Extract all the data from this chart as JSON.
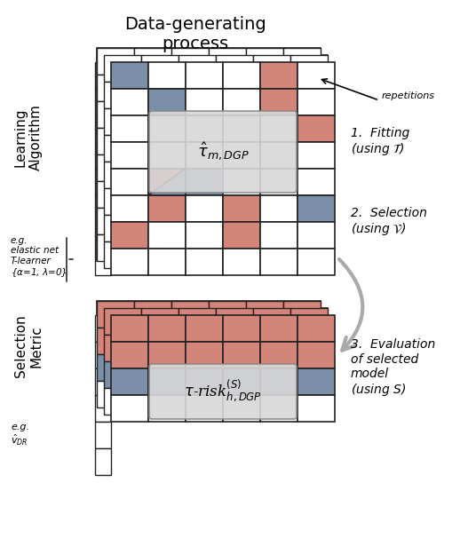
{
  "title": "Data-generating\nprocess",
  "top_label": "Learning\nAlgorithm",
  "bottom_label": "Selection\nMetric",
  "color_salmon": "#D4857A",
  "color_steel": "#7B8FA8",
  "color_white": "#FFFFFF",
  "color_lightgray": "#D8D8D8",
  "color_bg": "#FFFFFF",
  "grid_color": "#222222",
  "annotation1": "1. Fitting\n(using $\\mathcal{T}$)",
  "annotation2": "2. Selection\n(using $\\mathcal{V}$)",
  "annotation3": "3. Evaluation\nof selected\nmodel\n(using $S$)",
  "eg_top": "e.g.\nelastic net\nT-learner\n{$\\alpha$=1, $\\lambda$=0}",
  "eg_bottom": "e.g.\n$\\hat{v}_{DR}$",
  "repetitions_label": "repetitions",
  "label1": "$\\hat{\\tau}_{m,DGP}$",
  "label2": "$\\tau$-risk$^{(S)}_{h,DGP}$"
}
